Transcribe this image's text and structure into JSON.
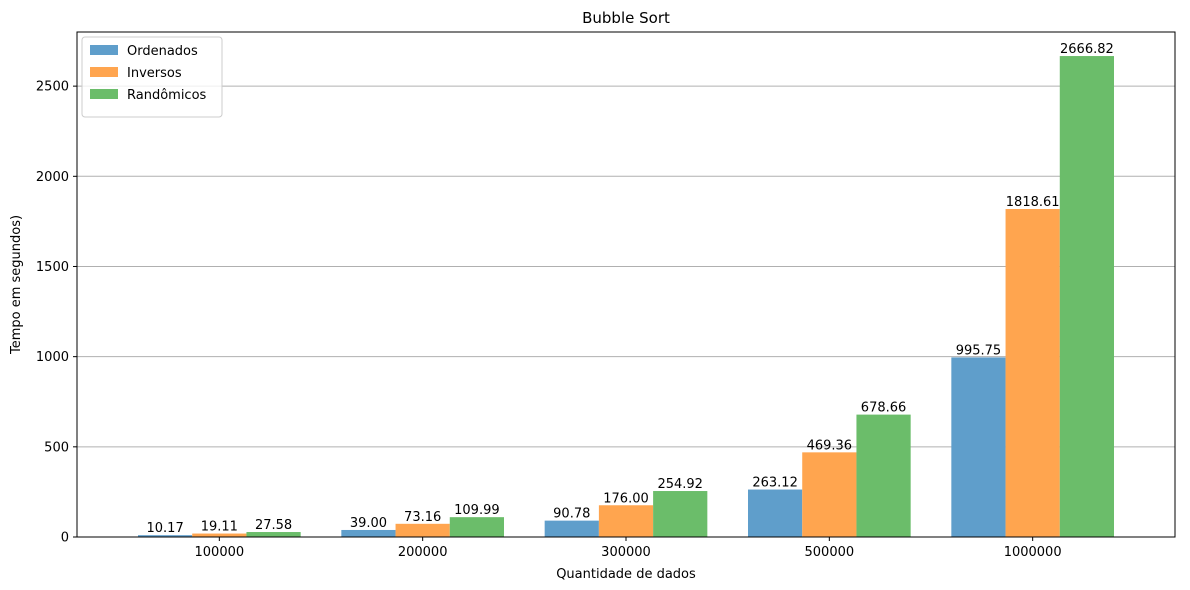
{
  "chart_data": {
    "type": "bar",
    "title": "Bubble Sort",
    "xlabel": "Quantidade de dados",
    "ylabel": "Tempo em segundos)",
    "categories": [
      "100000",
      "200000",
      "300000",
      "500000",
      "1000000"
    ],
    "series": [
      {
        "name": "Ordenados",
        "color": "#5f9ecb",
        "values": [
          10.17,
          39.0,
          90.78,
          263.12,
          995.75
        ],
        "labels": [
          "10.17",
          "39.00",
          "90.78",
          "263.12",
          "995.75"
        ]
      },
      {
        "name": "Inversos",
        "color": "#ffa54f",
        "values": [
          19.11,
          73.16,
          176.0,
          469.36,
          1818.61
        ],
        "labels": [
          "19.11",
          "73.16",
          "176.00",
          "469.36",
          "1818.61"
        ]
      },
      {
        "name": "Randômicos",
        "color": "#6bbd6a",
        "values": [
          27.58,
          109.99,
          254.92,
          678.66,
          2666.82
        ],
        "labels": [
          "27.58",
          "109.99",
          "254.92",
          "678.66",
          "2666.82"
        ]
      }
    ],
    "ylim": [
      0,
      2800.16
    ],
    "yticks": [
      0,
      500,
      1000,
      1500,
      2000,
      2500
    ],
    "grid": "y",
    "legend": "top-left"
  }
}
